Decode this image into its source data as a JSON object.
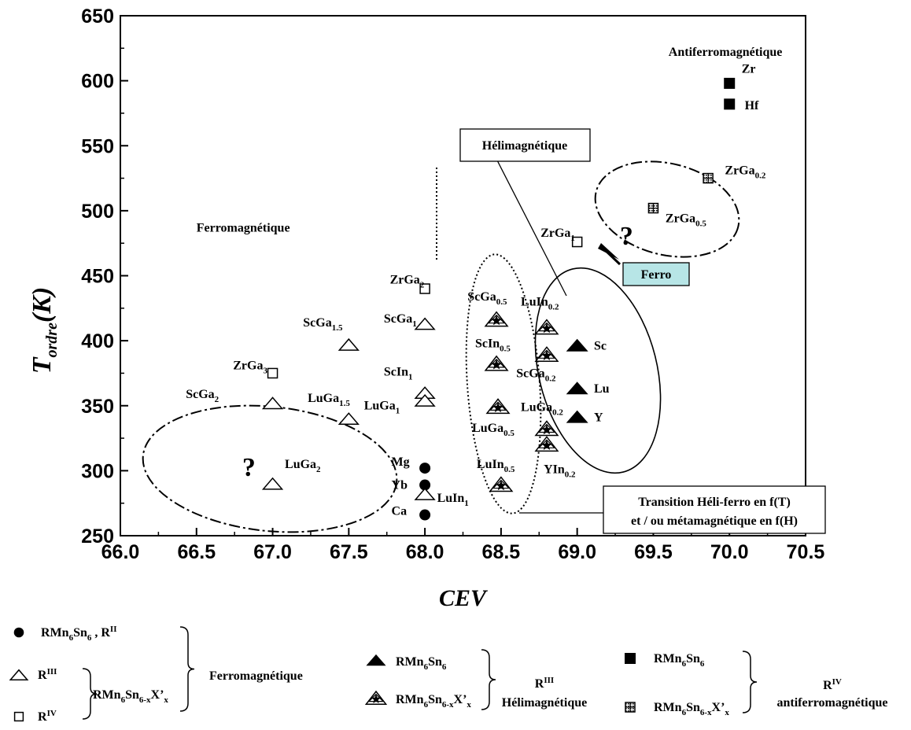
{
  "chart_data": {
    "type": "scatter",
    "xlabel": "CEV",
    "ylabel_main": "T",
    "ylabel_sub": "ordre",
    "ylabel_tail": "(K)",
    "xlim": [
      66.0,
      70.5
    ],
    "ylim": [
      250,
      650
    ],
    "xticks": [
      "66.0",
      "66.5",
      "67.0",
      "67.5",
      "68.0",
      "68.5",
      "69.0",
      "69.5",
      "70.0",
      "70.5"
    ],
    "yticks": [
      "250",
      "300",
      "350",
      "400",
      "450",
      "500",
      "550",
      "600",
      "650"
    ],
    "series": [
      {
        "name": "RMn6Sn6 , RII",
        "marker": "filled-circle",
        "points": [
          {
            "x": 68.0,
            "y": 302
          },
          {
            "x": 68.0,
            "y": 289
          },
          {
            "x": 68.0,
            "y": 266
          }
        ]
      },
      {
        "name": "RIII RMn6Sn6-xX'x",
        "marker": "open-triangle",
        "points": [
          {
            "x": 68.0,
            "y": 413
          },
          {
            "x": 67.5,
            "y": 397
          },
          {
            "x": 67.0,
            "y": 352
          },
          {
            "x": 67.5,
            "y": 340
          },
          {
            "x": 68.0,
            "y": 360
          },
          {
            "x": 68.0,
            "y": 354
          },
          {
            "x": 67.0,
            "y": 290
          },
          {
            "x": 68.0,
            "y": 282
          }
        ]
      },
      {
        "name": "RIV RMn6Sn6-xX'x",
        "marker": "open-square",
        "points": [
          {
            "x": 68.0,
            "y": 440
          },
          {
            "x": 67.0,
            "y": 375
          },
          {
            "x": 69.0,
            "y": 476
          }
        ]
      },
      {
        "name": "RIII RMn6Sn6",
        "marker": "filled-triangle",
        "points": [
          {
            "x": 69.0,
            "y": 396
          },
          {
            "x": 69.0,
            "y": 363
          },
          {
            "x": 69.0,
            "y": 341
          }
        ]
      },
      {
        "name": "RIII RMn6Sn6-xX'x",
        "marker": "star-triangle",
        "points": [
          {
            "x": 68.47,
            "y": 416
          },
          {
            "x": 68.47,
            "y": 382
          },
          {
            "x": 68.48,
            "y": 349
          },
          {
            "x": 68.5,
            "y": 289
          },
          {
            "x": 68.8,
            "y": 410
          },
          {
            "x": 68.8,
            "y": 389
          },
          {
            "x": 68.8,
            "y": 332
          },
          {
            "x": 68.8,
            "y": 320
          }
        ]
      },
      {
        "name": "RIV RMn6Sn6",
        "marker": "filled-square",
        "points": [
          {
            "x": 70.0,
            "y": 598
          },
          {
            "x": 70.0,
            "y": 582
          }
        ]
      },
      {
        "name": "RIV RMn6Sn6-xX'x",
        "marker": "hatched-square",
        "points": [
          {
            "x": 69.86,
            "y": 525
          },
          {
            "x": 69.5,
            "y": 502
          }
        ]
      }
    ],
    "point_labels": [
      {
        "b": "ZrGa",
        "s": "2",
        "x": 67.77,
        "y": 444
      },
      {
        "b": "ScGa",
        "s": "1",
        "x": 67.73,
        "y": 414
      },
      {
        "b": "ScGa",
        "s": "1.5",
        "x": 67.2,
        "y": 411
      },
      {
        "b": "ZrGa",
        "s": "3",
        "x": 66.74,
        "y": 378
      },
      {
        "b": "ScGa",
        "s": "2",
        "x": 66.43,
        "y": 356
      },
      {
        "b": "LuGa",
        "s": "1.5",
        "x": 67.23,
        "y": 353
      },
      {
        "b": "ScIn",
        "s": "1",
        "x": 67.73,
        "y": 373
      },
      {
        "b": "LuGa",
        "s": "1",
        "x": 67.6,
        "y": 347
      },
      {
        "b": "LuGa",
        "s": "2",
        "x": 67.08,
        "y": 302
      },
      {
        "b": "LuIn",
        "s": "1",
        "x": 68.08,
        "y": 276
      },
      {
        "b": "Mg",
        "s": "",
        "x": 67.78,
        "y": 304
      },
      {
        "b": "Yb",
        "s": "",
        "x": 67.78,
        "y": 286
      },
      {
        "b": "Ca",
        "s": "",
        "x": 67.78,
        "y": 266
      },
      {
        "b": "ScGa",
        "s": "0.5",
        "x": 68.28,
        "y": 431
      },
      {
        "b": "ScIn",
        "s": "0.5",
        "x": 68.33,
        "y": 395
      },
      {
        "b": "LuGa",
        "s": "0.5",
        "x": 68.31,
        "y": 330
      },
      {
        "b": "LuIn",
        "s": "0.5",
        "x": 68.34,
        "y": 302
      },
      {
        "b": "LuIn",
        "s": "0.2",
        "x": 68.63,
        "y": 427
      },
      {
        "b": "ScGa",
        "s": "0.2",
        "x": 68.6,
        "y": 372
      },
      {
        "b": "LuGa",
        "s": "0.2",
        "x": 68.63,
        "y": 346
      },
      {
        "b": "YIn",
        "s": "0.2",
        "x": 68.78,
        "y": 298
      },
      {
        "b": "Sc",
        "s": "",
        "x": 69.11,
        "y": 393
      },
      {
        "b": "Lu",
        "s": "",
        "x": 69.11,
        "y": 360
      },
      {
        "b": "Y",
        "s": "",
        "x": 69.11,
        "y": 338
      },
      {
        "b": "ZrGa",
        "s": "1",
        "x": 68.76,
        "y": 480
      },
      {
        "b": "Zr",
        "s": "",
        "x": 70.08,
        "y": 606
      },
      {
        "b": "Hf",
        "s": "",
        "x": 70.1,
        "y": 578
      },
      {
        "b": "ZrGa",
        "s": "0.2",
        "x": 69.97,
        "y": 528
      },
      {
        "b": "ZrGa",
        "s": "0.5",
        "x": 69.58,
        "y": 491
      }
    ],
    "question_marks": [
      {
        "x": 66.8,
        "y": 296
      },
      {
        "x": 69.28,
        "y": 474
      }
    ],
    "regions": {
      "antiferro": {
        "text": "Antiferromagnétique",
        "x": 69.6,
        "y": 619
      },
      "ferro": {
        "text": "Ferromagnétique",
        "x": 66.5,
        "y": 484
      }
    },
    "boxes": {
      "helimag": "Hélimagnétique",
      "ferro": "Ferro",
      "transition_line1": "Transition Héli-ferro en f(T)",
      "transition_line2": "et / ou métamagnétique en f(H)"
    }
  },
  "legend": {
    "group1": [
      {
        "marker": "filled-circle",
        "b": "RMn",
        "s1": "6",
        "m": "Sn",
        "s2": "6",
        "t": " ,  R",
        "sup": "II"
      },
      {
        "marker": "open-triangle",
        "t": "R",
        "sup": "III"
      },
      {
        "marker": "open-square",
        "t": "R",
        "sup": "IV"
      }
    ],
    "group1_mid": {
      "b": "RMn",
      "s1": "6",
      "m": "Sn",
      "s2": "6-x",
      "t": "X’",
      "s3": "x"
    },
    "group1_label": "Ferromagnétique",
    "group2": [
      {
        "marker": "filled-triangle",
        "b": "RMn",
        "s1": "6",
        "m": "Sn",
        "s2": "6",
        "t": ""
      },
      {
        "marker": "star-triangle",
        "b": "RMn",
        "s1": "6",
        "m": "Sn",
        "s2": "6-x",
        "t": "X’",
        "s3": "x"
      }
    ],
    "group2_label_r": "R",
    "group2_label_sup": "III",
    "group2_label": "Hélimagnétique",
    "group3": [
      {
        "marker": "filled-square",
        "b": "RMn",
        "s1": "6",
        "m": "Sn",
        "s2": "6",
        "t": ""
      },
      {
        "marker": "hatched-square",
        "b": "RMn",
        "s1": "6",
        "m": "Sn",
        "s2": "6-x",
        "t": "X’",
        "s3": "x"
      }
    ],
    "group3_label_r": "R",
    "group3_label_sup": "IV",
    "group3_label": "antiferromagnétique"
  }
}
